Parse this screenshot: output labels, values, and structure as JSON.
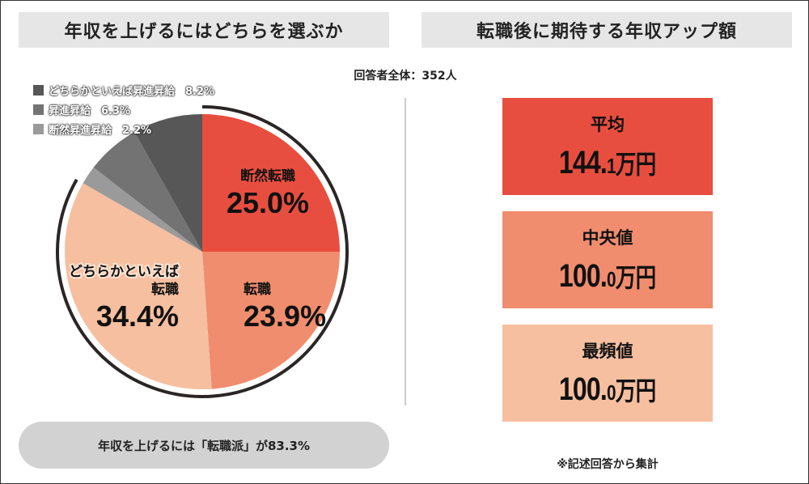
{
  "left_title": "年収を上げるにはどちらを選ぶか",
  "right_title": "転職後に期待する年収アップ額",
  "respondents": "回答者全体：352人",
  "chart_data": {
    "type": "pie",
    "title": "年収を上げるにはどちらを選ぶか",
    "slices": [
      {
        "label": "断然転職",
        "value": 25.0,
        "value_label": "25.0%",
        "color": "#e84e3f"
      },
      {
        "label": "転職",
        "value": 23.9,
        "value_label": "23.9%",
        "color": "#f08d6e"
      },
      {
        "label": "どちらかといえば転職",
        "label_lines": [
          "どちらかといえば",
          "転職"
        ],
        "value": 34.4,
        "value_label": "34.4%",
        "color": "#f6bfa0"
      },
      {
        "label": "断然昇進昇給",
        "value": 2.2,
        "value_label": "2.2%",
        "color": "#9a9a9a"
      },
      {
        "label": "昇進昇給",
        "value": 6.3,
        "value_label": "6.3%",
        "color": "#737373"
      },
      {
        "label": "どちらかといえば昇進昇給",
        "value": 8.2,
        "value_label": "8.2%",
        "color": "#575757"
      }
    ],
    "legend_order": [
      5,
      4,
      3
    ],
    "highlight_arc": {
      "covers": "転職派",
      "ring_color": "#2b2626"
    }
  },
  "summary": "年収を上げるには「転職派」が83.3%",
  "stats": [
    {
      "label": "平均",
      "int": "144.",
      "dec": "1",
      "unit": "万円",
      "color": "#e84e3f"
    },
    {
      "label": "中央値",
      "int": "100.",
      "dec": "0",
      "unit": "万円",
      "color": "#f08d6e"
    },
    {
      "label": "最頻値",
      "int": "100.",
      "dec": "0",
      "unit": "万円",
      "color": "#f6bfa0"
    }
  ],
  "note": "※記述回答から集計"
}
